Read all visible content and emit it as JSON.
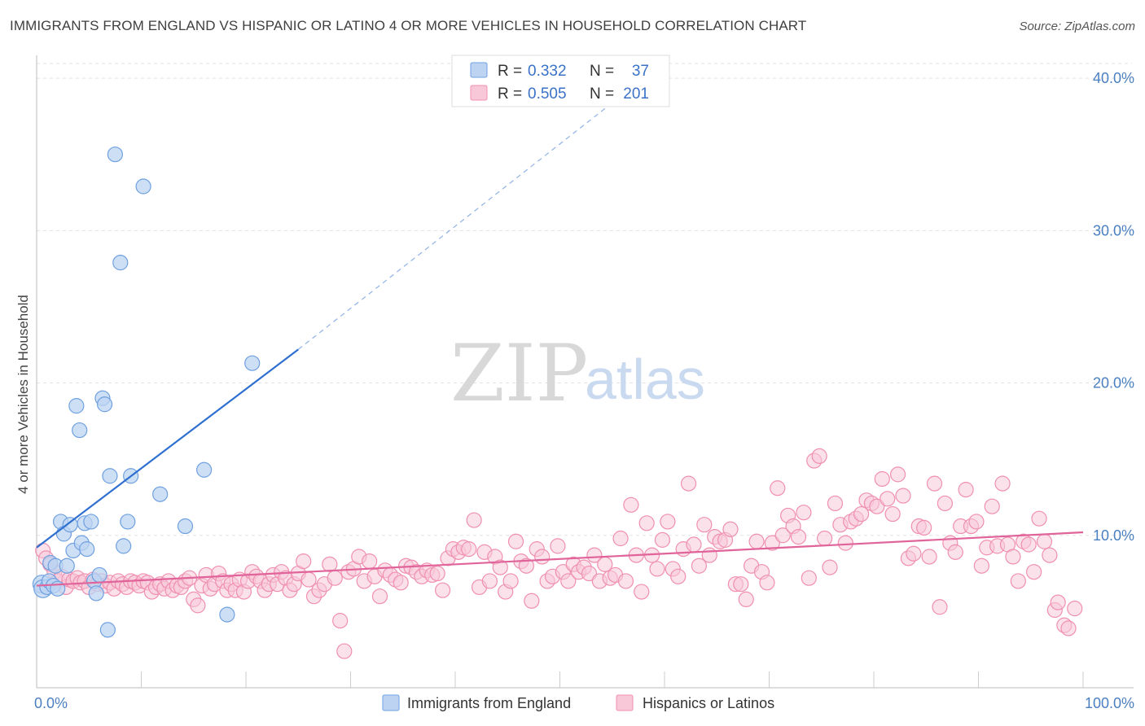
{
  "title": "IMMIGRANTS FROM ENGLAND VS HISPANIC OR LATINO 4 OR MORE VEHICLES IN HOUSEHOLD CORRELATION CHART",
  "source": "Source: ZipAtlas.com",
  "watermark": {
    "zip": "ZIP",
    "atlas": "atlas"
  },
  "chart_data": {
    "type": "scatter",
    "ylabel": "4 or more Vehicles in Household",
    "xlim": [
      0,
      100
    ],
    "ylim": [
      0,
      41.5
    ],
    "x_ticks": [
      {
        "value": 0,
        "label": "0.0%"
      },
      {
        "value": 100,
        "label": "100.0%"
      }
    ],
    "y_ticks": [
      {
        "value": 10,
        "label": "10.0%"
      },
      {
        "value": 20,
        "label": "20.0%"
      },
      {
        "value": 30,
        "label": "30.0%"
      },
      {
        "value": 40,
        "label": "40.0%"
      }
    ],
    "grid": "horizontal dashed",
    "legend_position": "top-center",
    "series": [
      {
        "name": "Immigrants from England",
        "color": "#6fa0e0",
        "fill": "#bcd4f2",
        "line_color": "#2e6fd0",
        "stats": {
          "r_label": "R =",
          "r": "0.332",
          "n_label": "N =",
          "n": "37"
        },
        "trend": {
          "x0": 0,
          "y0": 9.2,
          "x1": 25,
          "y1": 22.2,
          "dash_to_x": 58,
          "dash_to_y": 40.0
        },
        "points": [
          [
            0.5,
            6.8
          ],
          [
            0.6,
            6.5
          ],
          [
            1.0,
            6.6
          ],
          [
            1.2,
            7.0
          ],
          [
            1.3,
            8.2
          ],
          [
            1.6,
            6.7
          ],
          [
            1.8,
            8.0
          ],
          [
            2.0,
            6.5
          ],
          [
            2.3,
            10.9
          ],
          [
            2.6,
            10.1
          ],
          [
            2.9,
            8.0
          ],
          [
            3.2,
            10.7
          ],
          [
            3.5,
            9.0
          ],
          [
            3.8,
            18.5
          ],
          [
            4.1,
            16.9
          ],
          [
            4.3,
            9.5
          ],
          [
            4.6,
            10.8
          ],
          [
            4.8,
            9.1
          ],
          [
            5.2,
            10.9
          ],
          [
            5.5,
            7.0
          ],
          [
            5.7,
            6.2
          ],
          [
            6.0,
            7.4
          ],
          [
            6.3,
            19.0
          ],
          [
            6.5,
            18.6
          ],
          [
            6.8,
            3.8
          ],
          [
            7.0,
            13.9
          ],
          [
            7.5,
            35.0
          ],
          [
            8.0,
            27.9
          ],
          [
            8.3,
            9.3
          ],
          [
            8.7,
            10.9
          ],
          [
            9.0,
            13.9
          ],
          [
            10.2,
            32.9
          ],
          [
            11.8,
            12.7
          ],
          [
            14.2,
            10.6
          ],
          [
            16.0,
            14.3
          ],
          [
            18.2,
            4.8
          ],
          [
            20.6,
            21.3
          ]
        ]
      },
      {
        "name": "Hispanics or Latinos",
        "color": "#f08fb0",
        "fill": "#f8c8d8",
        "line_color": "#e0649a",
        "stats": {
          "r_label": "R =",
          "r": "0.505",
          "n_label": "N =",
          "n": "201"
        },
        "trend": {
          "x0": 0,
          "y0": 6.7,
          "x1": 100,
          "y1": 10.2
        },
        "points": [
          [
            0.6,
            9.0
          ],
          [
            0.9,
            8.5
          ],
          [
            1.3,
            8.1
          ],
          [
            1.7,
            7.6
          ],
          [
            2.0,
            7.0
          ],
          [
            2.4,
            7.3
          ],
          [
            2.8,
            6.6
          ],
          [
            3.1,
            7.1
          ],
          [
            3.5,
            7.0
          ],
          [
            3.9,
            7.2
          ],
          [
            4.2,
            6.9
          ],
          [
            4.6,
            7.0
          ],
          [
            5.0,
            6.6
          ],
          [
            5.4,
            7.1
          ],
          [
            5.8,
            6.8
          ],
          [
            6.2,
            7.0
          ],
          [
            6.6,
            6.7
          ],
          [
            7.0,
            6.9
          ],
          [
            7.4,
            6.5
          ],
          [
            7.8,
            7.0
          ],
          [
            8.2,
            6.8
          ],
          [
            8.6,
            6.6
          ],
          [
            9.0,
            7.0
          ],
          [
            9.4,
            6.9
          ],
          [
            9.8,
            6.7
          ],
          [
            10.2,
            7.0
          ],
          [
            10.6,
            6.9
          ],
          [
            11.0,
            6.3
          ],
          [
            11.4,
            6.6
          ],
          [
            11.8,
            6.8
          ],
          [
            12.2,
            6.5
          ],
          [
            12.6,
            7.0
          ],
          [
            13.0,
            6.4
          ],
          [
            13.4,
            6.7
          ],
          [
            13.8,
            6.6
          ],
          [
            14.2,
            7.0
          ],
          [
            14.6,
            7.2
          ],
          [
            15.0,
            5.8
          ],
          [
            15.4,
            5.4
          ],
          [
            15.8,
            6.7
          ],
          [
            16.2,
            7.4
          ],
          [
            16.6,
            6.5
          ],
          [
            17.0,
            6.8
          ],
          [
            17.4,
            7.5
          ],
          [
            17.8,
            7.0
          ],
          [
            18.2,
            6.4
          ],
          [
            18.6,
            6.8
          ],
          [
            19.0,
            6.4
          ],
          [
            19.4,
            7.1
          ],
          [
            19.8,
            6.3
          ],
          [
            20.2,
            7.0
          ],
          [
            20.6,
            7.6
          ],
          [
            21.0,
            7.3
          ],
          [
            21.4,
            7.0
          ],
          [
            21.8,
            6.4
          ],
          [
            22.2,
            6.8
          ],
          [
            22.6,
            7.4
          ],
          [
            23.0,
            6.8
          ],
          [
            23.4,
            7.6
          ],
          [
            23.8,
            7.2
          ],
          [
            24.2,
            6.4
          ],
          [
            24.6,
            6.8
          ],
          [
            25.0,
            7.5
          ],
          [
            25.5,
            8.3
          ],
          [
            26.0,
            7.1
          ],
          [
            26.5,
            6.0
          ],
          [
            27.0,
            6.4
          ],
          [
            27.5,
            6.8
          ],
          [
            28.0,
            8.1
          ],
          [
            28.5,
            7.2
          ],
          [
            29.0,
            4.4
          ],
          [
            29.4,
            2.4
          ],
          [
            29.8,
            7.6
          ],
          [
            30.3,
            7.8
          ],
          [
            30.8,
            8.6
          ],
          [
            31.3,
            7.0
          ],
          [
            31.8,
            8.3
          ],
          [
            32.3,
            7.3
          ],
          [
            32.8,
            6.0
          ],
          [
            33.3,
            7.7
          ],
          [
            33.8,
            7.4
          ],
          [
            34.3,
            7.1
          ],
          [
            34.8,
            6.9
          ],
          [
            35.3,
            8.0
          ],
          [
            35.8,
            7.9
          ],
          [
            36.3,
            7.6
          ],
          [
            36.8,
            7.3
          ],
          [
            37.3,
            7.7
          ],
          [
            37.8,
            7.4
          ],
          [
            38.3,
            7.5
          ],
          [
            38.8,
            6.4
          ],
          [
            39.3,
            8.5
          ],
          [
            39.8,
            9.1
          ],
          [
            40.3,
            8.9
          ],
          [
            40.8,
            9.2
          ],
          [
            41.3,
            9.1
          ],
          [
            41.8,
            11.0
          ],
          [
            42.3,
            6.6
          ],
          [
            42.8,
            8.9
          ],
          [
            43.3,
            7.0
          ],
          [
            43.8,
            8.6
          ],
          [
            44.3,
            7.9
          ],
          [
            44.8,
            6.3
          ],
          [
            45.3,
            7.0
          ],
          [
            45.8,
            9.6
          ],
          [
            46.3,
            8.3
          ],
          [
            46.8,
            8.0
          ],
          [
            47.3,
            5.7
          ],
          [
            47.8,
            9.1
          ],
          [
            48.3,
            8.6
          ],
          [
            48.8,
            7.0
          ],
          [
            49.3,
            7.3
          ],
          [
            49.8,
            9.3
          ],
          [
            50.3,
            7.6
          ],
          [
            50.8,
            7.0
          ],
          [
            51.3,
            8.1
          ],
          [
            51.8,
            7.6
          ],
          [
            52.3,
            7.9
          ],
          [
            52.8,
            7.5
          ],
          [
            53.3,
            8.7
          ],
          [
            53.8,
            7.0
          ],
          [
            54.3,
            8.1
          ],
          [
            54.8,
            7.2
          ],
          [
            55.3,
            7.4
          ],
          [
            55.8,
            9.8
          ],
          [
            56.3,
            7.0
          ],
          [
            56.8,
            12.0
          ],
          [
            57.3,
            8.7
          ],
          [
            57.8,
            6.3
          ],
          [
            58.3,
            10.8
          ],
          [
            58.8,
            8.7
          ],
          [
            59.3,
            7.8
          ],
          [
            59.8,
            9.7
          ],
          [
            60.3,
            10.9
          ],
          [
            60.8,
            7.8
          ],
          [
            61.3,
            7.3
          ],
          [
            61.8,
            9.1
          ],
          [
            62.3,
            13.4
          ],
          [
            62.8,
            9.4
          ],
          [
            63.3,
            8.0
          ],
          [
            63.8,
            10.7
          ],
          [
            64.3,
            8.7
          ],
          [
            64.8,
            9.9
          ],
          [
            65.3,
            9.6
          ],
          [
            65.8,
            9.7
          ],
          [
            66.3,
            10.4
          ],
          [
            66.8,
            6.8
          ],
          [
            67.3,
            6.8
          ],
          [
            67.8,
            5.8
          ],
          [
            68.3,
            8.0
          ],
          [
            68.8,
            9.6
          ],
          [
            69.3,
            7.6
          ],
          [
            69.8,
            6.9
          ],
          [
            70.3,
            9.5
          ],
          [
            70.8,
            13.1
          ],
          [
            71.3,
            10.0
          ],
          [
            71.8,
            11.3
          ],
          [
            72.3,
            10.6
          ],
          [
            72.8,
            9.9
          ],
          [
            73.3,
            11.5
          ],
          [
            73.8,
            7.2
          ],
          [
            74.3,
            14.9
          ],
          [
            74.8,
            15.2
          ],
          [
            75.3,
            9.8
          ],
          [
            75.8,
            7.9
          ],
          [
            76.3,
            12.1
          ],
          [
            76.8,
            10.7
          ],
          [
            77.3,
            9.5
          ],
          [
            77.8,
            10.9
          ],
          [
            78.3,
            11.1
          ],
          [
            78.8,
            11.4
          ],
          [
            79.3,
            12.3
          ],
          [
            79.8,
            12.1
          ],
          [
            80.3,
            11.9
          ],
          [
            80.8,
            13.7
          ],
          [
            81.3,
            12.4
          ],
          [
            81.8,
            11.4
          ],
          [
            82.3,
            14.0
          ],
          [
            82.8,
            12.6
          ],
          [
            83.3,
            8.5
          ],
          [
            83.8,
            8.8
          ],
          [
            84.3,
            10.6
          ],
          [
            84.8,
            10.5
          ],
          [
            85.3,
            8.6
          ],
          [
            85.8,
            13.4
          ],
          [
            86.3,
            5.3
          ],
          [
            86.8,
            12.1
          ],
          [
            87.3,
            9.5
          ],
          [
            87.8,
            8.9
          ],
          [
            88.3,
            10.6
          ],
          [
            88.8,
            13.0
          ],
          [
            89.3,
            10.6
          ],
          [
            89.8,
            10.9
          ],
          [
            90.3,
            8.0
          ],
          [
            90.8,
            9.2
          ],
          [
            91.3,
            11.9
          ],
          [
            91.8,
            9.3
          ],
          [
            92.3,
            13.4
          ],
          [
            92.8,
            9.4
          ],
          [
            93.3,
            8.6
          ],
          [
            93.8,
            7.0
          ],
          [
            94.3,
            9.6
          ],
          [
            94.8,
            9.4
          ],
          [
            95.3,
            7.6
          ],
          [
            95.8,
            11.1
          ],
          [
            96.3,
            9.6
          ],
          [
            96.8,
            8.7
          ],
          [
            97.3,
            5.1
          ],
          [
            97.6,
            5.6
          ],
          [
            98.2,
            4.1
          ],
          [
            98.6,
            3.9
          ],
          [
            99.2,
            5.2
          ]
        ]
      }
    ]
  }
}
